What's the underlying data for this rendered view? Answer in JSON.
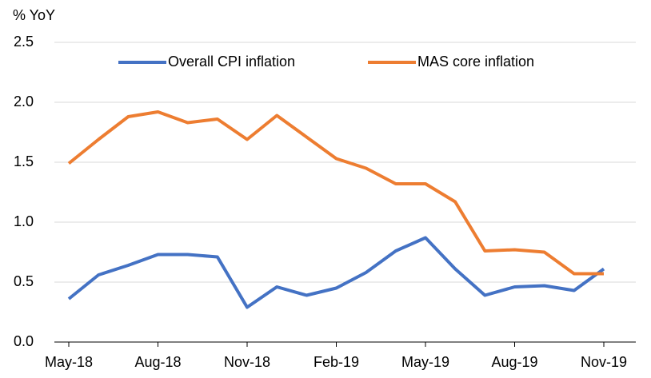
{
  "chart_data": {
    "type": "line",
    "y_label": "% YoY",
    "categories": [
      "May-18",
      null,
      null,
      "Aug-18",
      null,
      null,
      "Nov-18",
      null,
      null,
      "Feb-19",
      null,
      null,
      "May-19",
      null,
      null,
      "Aug-19",
      null,
      null,
      "Nov-19"
    ],
    "series": [
      {
        "name": "Overall CPI inflation",
        "color": "#4472c4",
        "values": [
          0.36,
          0.56,
          0.64,
          0.73,
          0.73,
          0.71,
          0.29,
          0.46,
          0.39,
          0.45,
          0.58,
          0.76,
          0.87,
          0.61,
          0.39,
          0.46,
          0.47,
          0.43,
          0.61
        ]
      },
      {
        "name": "MAS core inflation",
        "color": "#ed7d31",
        "values": [
          1.49,
          1.69,
          1.88,
          1.92,
          1.83,
          1.86,
          1.69,
          1.89,
          1.71,
          1.53,
          1.45,
          1.32,
          1.32,
          1.17,
          0.76,
          0.77,
          0.75,
          0.57,
          0.57
        ]
      }
    ],
    "ylim": [
      0,
      2.5
    ],
    "yticks": [
      {
        "value": 0,
        "label": "0.0"
      },
      {
        "value": 0.5,
        "label": "0.5"
      },
      {
        "value": 1,
        "label": "1.0"
      },
      {
        "value": 1.5,
        "label": "1.5"
      },
      {
        "value": 2,
        "label": "2.0"
      },
      {
        "value": 2.5,
        "label": "2.5"
      }
    ],
    "grid": true,
    "legend": "top"
  }
}
